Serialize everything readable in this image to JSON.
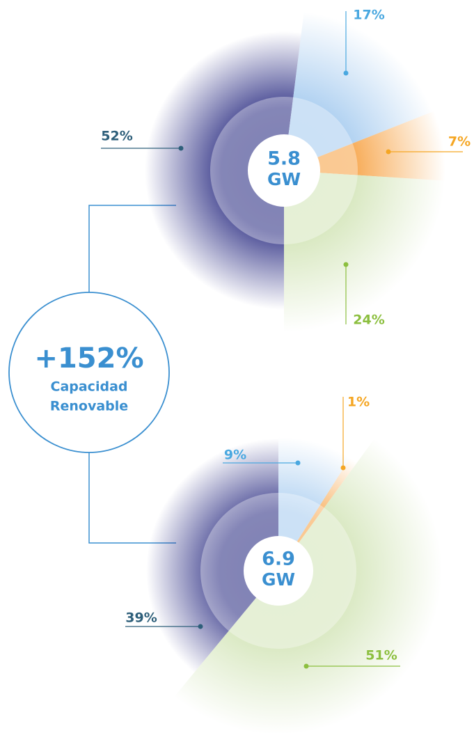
{
  "chart_data": [
    {
      "type": "pie",
      "center_value": "5.8",
      "center_unit": "GW",
      "values": [
        52,
        17,
        7,
        24
      ],
      "value_labels": [
        "52%",
        "17%",
        "7%",
        "24%"
      ],
      "colors": [
        "#2f3185",
        "#a9cdf0",
        "#f7a54a",
        "#d5e6bb"
      ],
      "label_colors": [
        "#2e5f7a",
        "#4aa8e0",
        "#f5a623",
        "#8cbf3f"
      ]
    },
    {
      "type": "pie",
      "center_value": "6.9",
      "center_unit": "GW",
      "values": [
        9,
        1,
        51,
        39
      ],
      "value_labels": [
        "9%",
        "1%",
        "51%",
        "39%"
      ],
      "colors": [
        "#a9cdf0",
        "#f7a54a",
        "#d5e6bb",
        "#2f3185"
      ],
      "label_colors": [
        "#4aa8e0",
        "#f5a623",
        "#8cbf3f",
        "#2e5f7a"
      ]
    }
  ],
  "callout": {
    "value": "+152%",
    "line1": "Capacidad",
    "line2": "Renovable"
  }
}
